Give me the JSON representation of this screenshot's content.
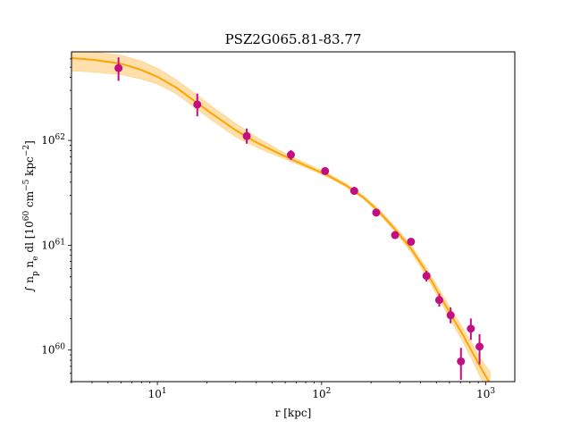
{
  "chart_data": {
    "type": "scatter",
    "title": "PSZ2G065.81-83.77",
    "xlabel": "r [kpc]",
    "ylabel": "∫ n_p n_e dl [10^60 cm^-5 kpc^-2]",
    "xscale": "log",
    "yscale": "log",
    "xlim": [
      3.0,
      1500
    ],
    "ylim": [
      5e+59,
      7e+62
    ],
    "x_ticks": [
      {
        "value": 10,
        "base": "10",
        "exp": "1"
      },
      {
        "value": 100,
        "base": "10",
        "exp": "2"
      },
      {
        "value": 1000,
        "base": "10",
        "exp": "3"
      }
    ],
    "y_ticks": [
      {
        "value": 1e+60,
        "base": "10",
        "exp": "60"
      },
      {
        "value": 1e+61,
        "base": "10",
        "exp": "61"
      },
      {
        "value": 1e+62,
        "base": "10",
        "exp": "62"
      }
    ],
    "colors": {
      "data": "#c20e82",
      "model": "#ffa500",
      "band": "#ffd592"
    },
    "data_points": [
      {
        "x": 5.8,
        "y": 4.9e+62,
        "ylo": 3.7e+62,
        "yhi": 6.2e+62
      },
      {
        "x": 17.5,
        "y": 2.2e+62,
        "ylo": 1.7e+62,
        "yhi": 2.8e+62
      },
      {
        "x": 35,
        "y": 1.1e+62,
        "ylo": 9.3e+61,
        "yhi": 1.3e+62
      },
      {
        "x": 65,
        "y": 7.3e+61,
        "ylo": 6.5e+61,
        "yhi": 8.1e+61
      },
      {
        "x": 105,
        "y": 5.1e+61,
        "ylo": 4.7e+61,
        "yhi": 5.5e+61
      },
      {
        "x": 158,
        "y": 3.3e+61,
        "ylo": 3.05e+61,
        "yhi": 3.6e+61
      },
      {
        "x": 215,
        "y": 2.05e+61,
        "ylo": 1.9e+61,
        "yhi": 2.2e+61
      },
      {
        "x": 280,
        "y": 1.25e+61,
        "ylo": 1.15e+61,
        "yhi": 1.35e+61
      },
      {
        "x": 350,
        "y": 1.08e+61,
        "ylo": 1e+61,
        "yhi": 1.16e+61
      },
      {
        "x": 435,
        "y": 5.1e+60,
        "ylo": 4.5e+60,
        "yhi": 5.7e+60
      },
      {
        "x": 520,
        "y": 3e+60,
        "ylo": 2.6e+60,
        "yhi": 3.45e+60
      },
      {
        "x": 610,
        "y": 2.15e+60,
        "ylo": 1.8e+60,
        "yhi": 2.55e+60
      },
      {
        "x": 705,
        "y": 7.8e+59,
        "ylo": 5.2e+59,
        "yhi": 1.05e+60
      },
      {
        "x": 810,
        "y": 1.6e+60,
        "ylo": 1.25e+60,
        "yhi": 2e+60
      },
      {
        "x": 915,
        "y": 1.08e+60,
        "ylo": 7.3e+59,
        "yhi": 1.42e+60
      }
    ],
    "model_curve": {
      "x": [
        3.0,
        4,
        6,
        8,
        10,
        13,
        17,
        22,
        30,
        40,
        55,
        70,
        90,
        110,
        140,
        180,
        220,
        280,
        350,
        430,
        520,
        620,
        720,
        820,
        920,
        1000,
        1060
      ],
      "y": [
        6.1e+62,
        5.9e+62,
        5.4e+62,
        4.7e+62,
        4.05e+62,
        3.2e+62,
        2.35e+62,
        1.75e+62,
        1.25e+62,
        9.6e+61,
        7.5e+61,
        6.3e+61,
        5.3e+61,
        4.6e+61,
        3.75e+61,
        2.85e+61,
        2.15e+61,
        1.42e+61,
        9.3e+60,
        5.7e+60,
        3.4e+60,
        2.1e+60,
        1.42e+60,
        9.8e+59,
        7e+59,
        5.6e+59,
        4.8e+59
      ],
      "lo": [
        4.6e+62,
        4.5e+62,
        4.25e+62,
        3.85e+62,
        3.45e+62,
        2.8e+62,
        2.05e+62,
        1.52e+62,
        1.08e+62,
        8.6e+61,
        7e+61,
        6e+61,
        5.1e+61,
        4.45e+61,
        3.62e+61,
        2.75e+61,
        2.05e+61,
        1.34e+61,
        8.6e+60,
        5.2e+60,
        3.05e+60,
        1.85e+60,
        1.22e+60,
        8.2e+59,
        5.6e+59,
        4.3e+59,
        3.6e+59
      ],
      "hi": [
        7.2e+62,
        7e+62,
        6.5e+62,
        5.7e+62,
        4.9e+62,
        3.8e+62,
        2.8e+62,
        2.05e+62,
        1.45e+62,
        1.08e+62,
        8.1e+61,
        6.7e+61,
        5.6e+61,
        4.8e+61,
        3.9e+61,
        2.96e+61,
        2.26e+61,
        1.51e+61,
        1e+61,
        6.2e+60,
        3.8e+60,
        2.4e+60,
        1.65e+60,
        1.17e+60,
        8.5e+59,
        7e+59,
        6.2e+59
      ]
    }
  }
}
